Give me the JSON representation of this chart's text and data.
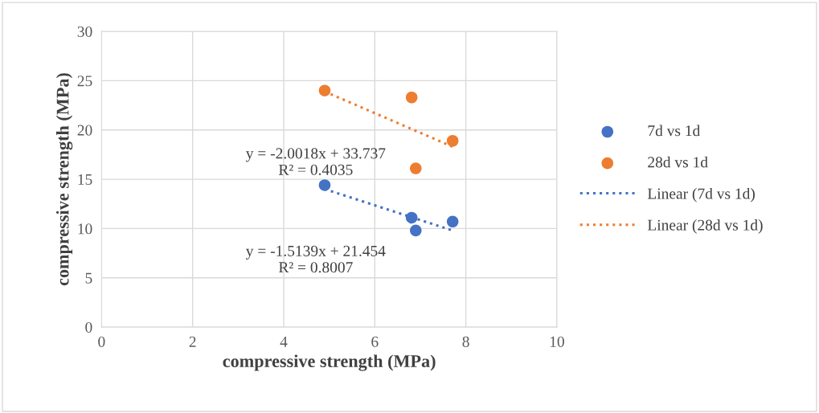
{
  "chart_data": {
    "type": "scatter",
    "xlabel": "compressive strength (MPa)",
    "ylabel": "compressive strength (MPa)",
    "xlim": [
      0,
      10
    ],
    "xticks": [
      0,
      2,
      4,
      6,
      8,
      10
    ],
    "ylim": [
      0,
      30
    ],
    "yticks": [
      0,
      5,
      10,
      15,
      20,
      25,
      30
    ],
    "grid": true,
    "legend": "right",
    "marker": "circle",
    "series": [
      {
        "name": "7d vs 1d",
        "color": "#4472c4",
        "x": [
          4.9,
          6.81,
          6.9,
          7.71
        ],
        "values": [
          14.4,
          11.1,
          9.8,
          10.7
        ]
      },
      {
        "name": "28d vs 1d",
        "color": "#ed7d31",
        "x": [
          4.9,
          6.81,
          6.9,
          7.71
        ],
        "values": [
          24.0,
          23.3,
          16.1,
          18.9
        ]
      },
      {
        "name": "Linear (7d vs 1d)",
        "type": "line",
        "line_style": "dotted",
        "marker": "none",
        "color": "#4472c4",
        "x": [
          4.9,
          7.71
        ],
        "values": [
          14.0,
          9.8
        ]
      },
      {
        "name": "Linear (28d vs 1d)",
        "type": "line",
        "line_style": "dotted",
        "marker": "none",
        "color": "#ed7d31",
        "x": [
          4.9,
          7.71
        ],
        "values": [
          23.9,
          18.3
        ]
      }
    ],
    "annotations": [
      "y = -1.5139x + 21.454\nR² = 0.8007",
      "y = -2.0018x + 33.737\nR² = 0.4035"
    ]
  }
}
